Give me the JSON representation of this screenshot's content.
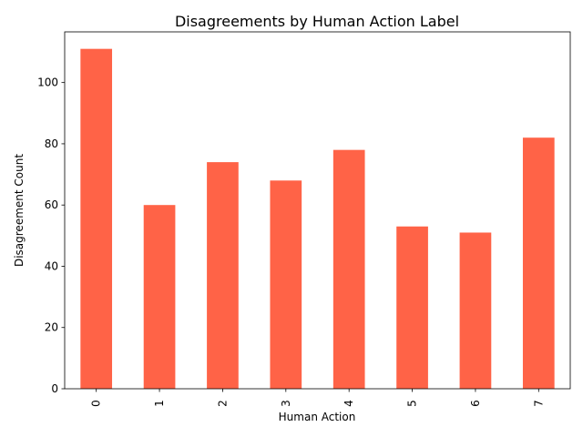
{
  "chart_data": {
    "type": "bar",
    "title": "Disagreements by Human Action Label",
    "xlabel": "Human Action",
    "ylabel": "Disagreement Count",
    "categories": [
      "0",
      "1",
      "2",
      "3",
      "4",
      "5",
      "6",
      "7"
    ],
    "values": [
      111,
      60,
      74,
      68,
      78,
      53,
      51,
      82
    ],
    "ylim": [
      0,
      116.55
    ],
    "yticks": [
      0,
      20,
      40,
      60,
      80,
      100
    ],
    "bar_color": "#ff6347",
    "grid": false,
    "legend": "none"
  }
}
